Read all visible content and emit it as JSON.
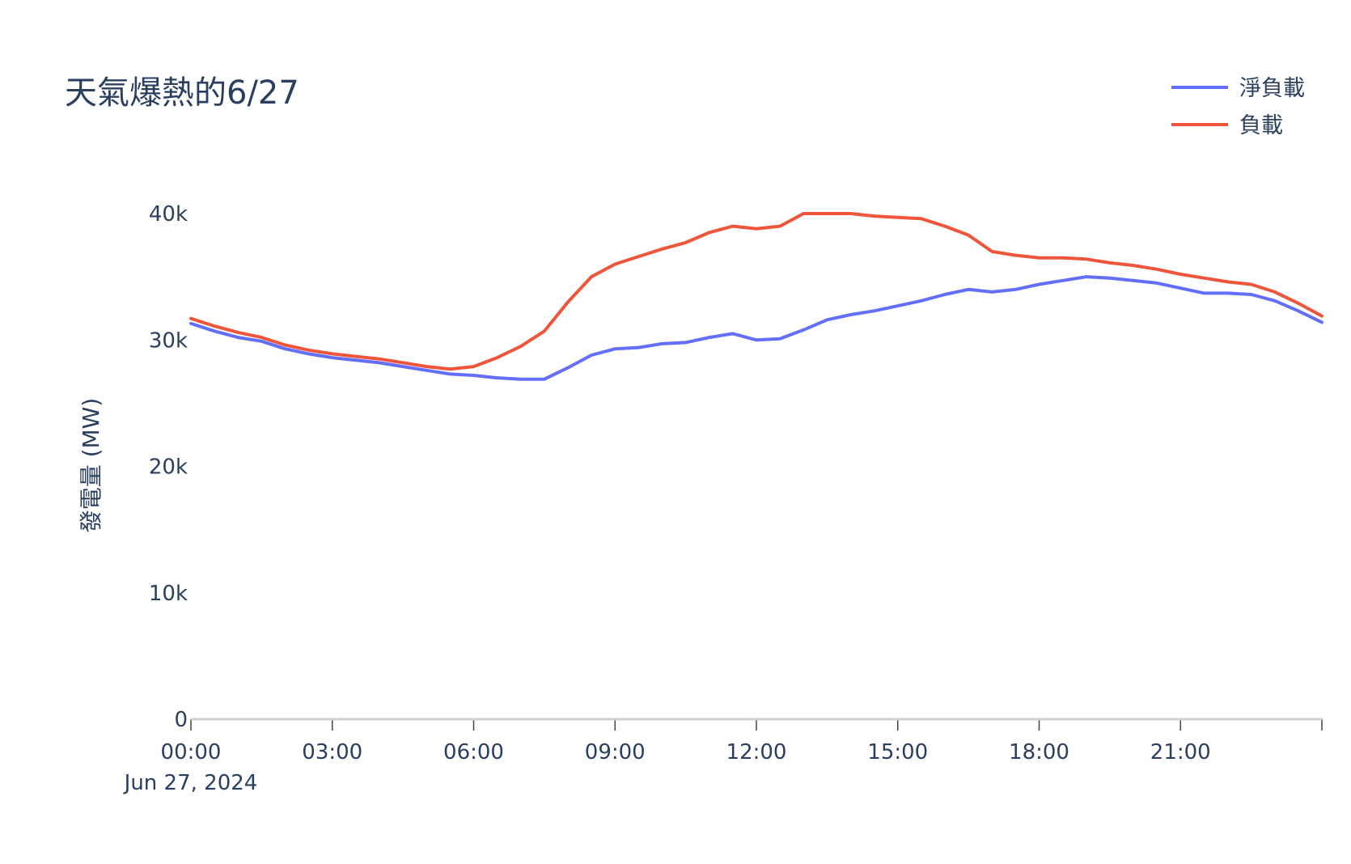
{
  "chart_data": {
    "type": "line",
    "title": "天氣爆熱的6/27",
    "ylabel": "發電量 (MW)",
    "xlabel": "",
    "date_label": "Jun 27, 2024",
    "xlim_hours": [
      0,
      24
    ],
    "ylim": [
      0,
      40000
    ],
    "x_ticks": [
      "00:00",
      "03:00",
      "06:00",
      "09:00",
      "12:00",
      "15:00",
      "18:00",
      "21:00"
    ],
    "y_ticks": [
      "0",
      "10k",
      "20k",
      "30k",
      "40k"
    ],
    "grid": false,
    "legend_position": "top-right",
    "x_hours": [
      0,
      0.5,
      1,
      1.5,
      2,
      2.5,
      3,
      3.5,
      4,
      4.5,
      5,
      5.5,
      6,
      6.5,
      7,
      7.5,
      8,
      8.5,
      9,
      9.5,
      10,
      10.5,
      11,
      11.5,
      12,
      12.5,
      13,
      13.5,
      14,
      14.5,
      15,
      15.5,
      16,
      16.5,
      17,
      17.5,
      18,
      18.5,
      19,
      19.5,
      20,
      20.5,
      21,
      21.5,
      22,
      22.5,
      23,
      23.5,
      24
    ],
    "series": [
      {
        "name": "淨負載",
        "color": "#636efa",
        "values": [
          31300,
          30700,
          30200,
          29900,
          29300,
          28900,
          28600,
          28400,
          28200,
          27900,
          27600,
          27300,
          27200,
          27000,
          26900,
          26900,
          27800,
          28800,
          29300,
          29400,
          29700,
          29800,
          30200,
          30500,
          30000,
          30100,
          30800,
          31600,
          32000,
          32300,
          32700,
          33100,
          33600,
          34000,
          33800,
          34000,
          34400,
          34700,
          35000,
          34900,
          34700,
          34500,
          34100,
          33700,
          33700,
          33600,
          33100,
          32300,
          31400
        ]
      },
      {
        "name": "負載",
        "color": "#ef553b",
        "values": [
          31700,
          31100,
          30600,
          30200,
          29600,
          29200,
          28900,
          28700,
          28500,
          28200,
          27900,
          27700,
          27900,
          28600,
          29500,
          30700,
          33000,
          35000,
          36000,
          36600,
          37200,
          37700,
          38500,
          39000,
          38800,
          39000,
          40000,
          40000,
          40000,
          39800,
          39700,
          39600,
          39000,
          38300,
          37000,
          36700,
          36500,
          36500,
          36400,
          36100,
          35900,
          35600,
          35200,
          34900,
          34600,
          34400,
          33800,
          32900,
          31900
        ]
      }
    ]
  }
}
